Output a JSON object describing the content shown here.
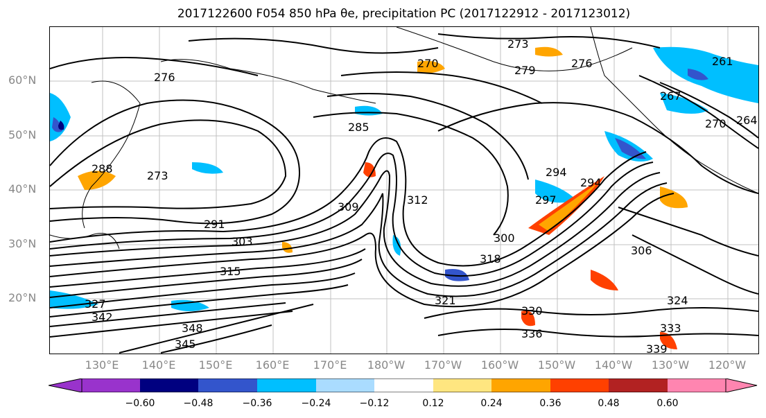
{
  "title": "2017122600 F054 850 hPa θe, precipitation PC (2017122912 - 2017123012)",
  "lat_labels": [
    "60°N",
    "50°N",
    "40°N",
    "30°N",
    "20°N"
  ],
  "lon_labels": [
    "130°E",
    "140°E",
    "150°E",
    "160°E",
    "170°E",
    "180°W",
    "170°W",
    "160°W",
    "150°W",
    "140°W",
    "130°W",
    "120°W"
  ],
  "contour_labels": [
    "270",
    "273",
    "276",
    "279",
    "261",
    "264",
    "267",
    "270",
    "276",
    "273",
    "285",
    "288",
    "291",
    "294",
    "294",
    "297",
    "300",
    "303",
    "306",
    "309",
    "312",
    "315",
    "318",
    "321",
    "324",
    "327",
    "330",
    "333",
    "336",
    "339",
    "342",
    "345",
    "348"
  ],
  "colorbar": {
    "ticks": [
      "−0.60",
      "−0.48",
      "−0.36",
      "−0.24",
      "−0.12",
      "0.12",
      "0.24",
      "0.36",
      "0.48",
      "0.60"
    ],
    "colors": [
      "#9933cc",
      "#000080",
      "#3355cc",
      "#00bfff",
      "#aadcff",
      "#ffffff",
      "#ffe680",
      "#ffa500",
      "#ff4000",
      "#b22222",
      "#ff85b0"
    ]
  }
}
